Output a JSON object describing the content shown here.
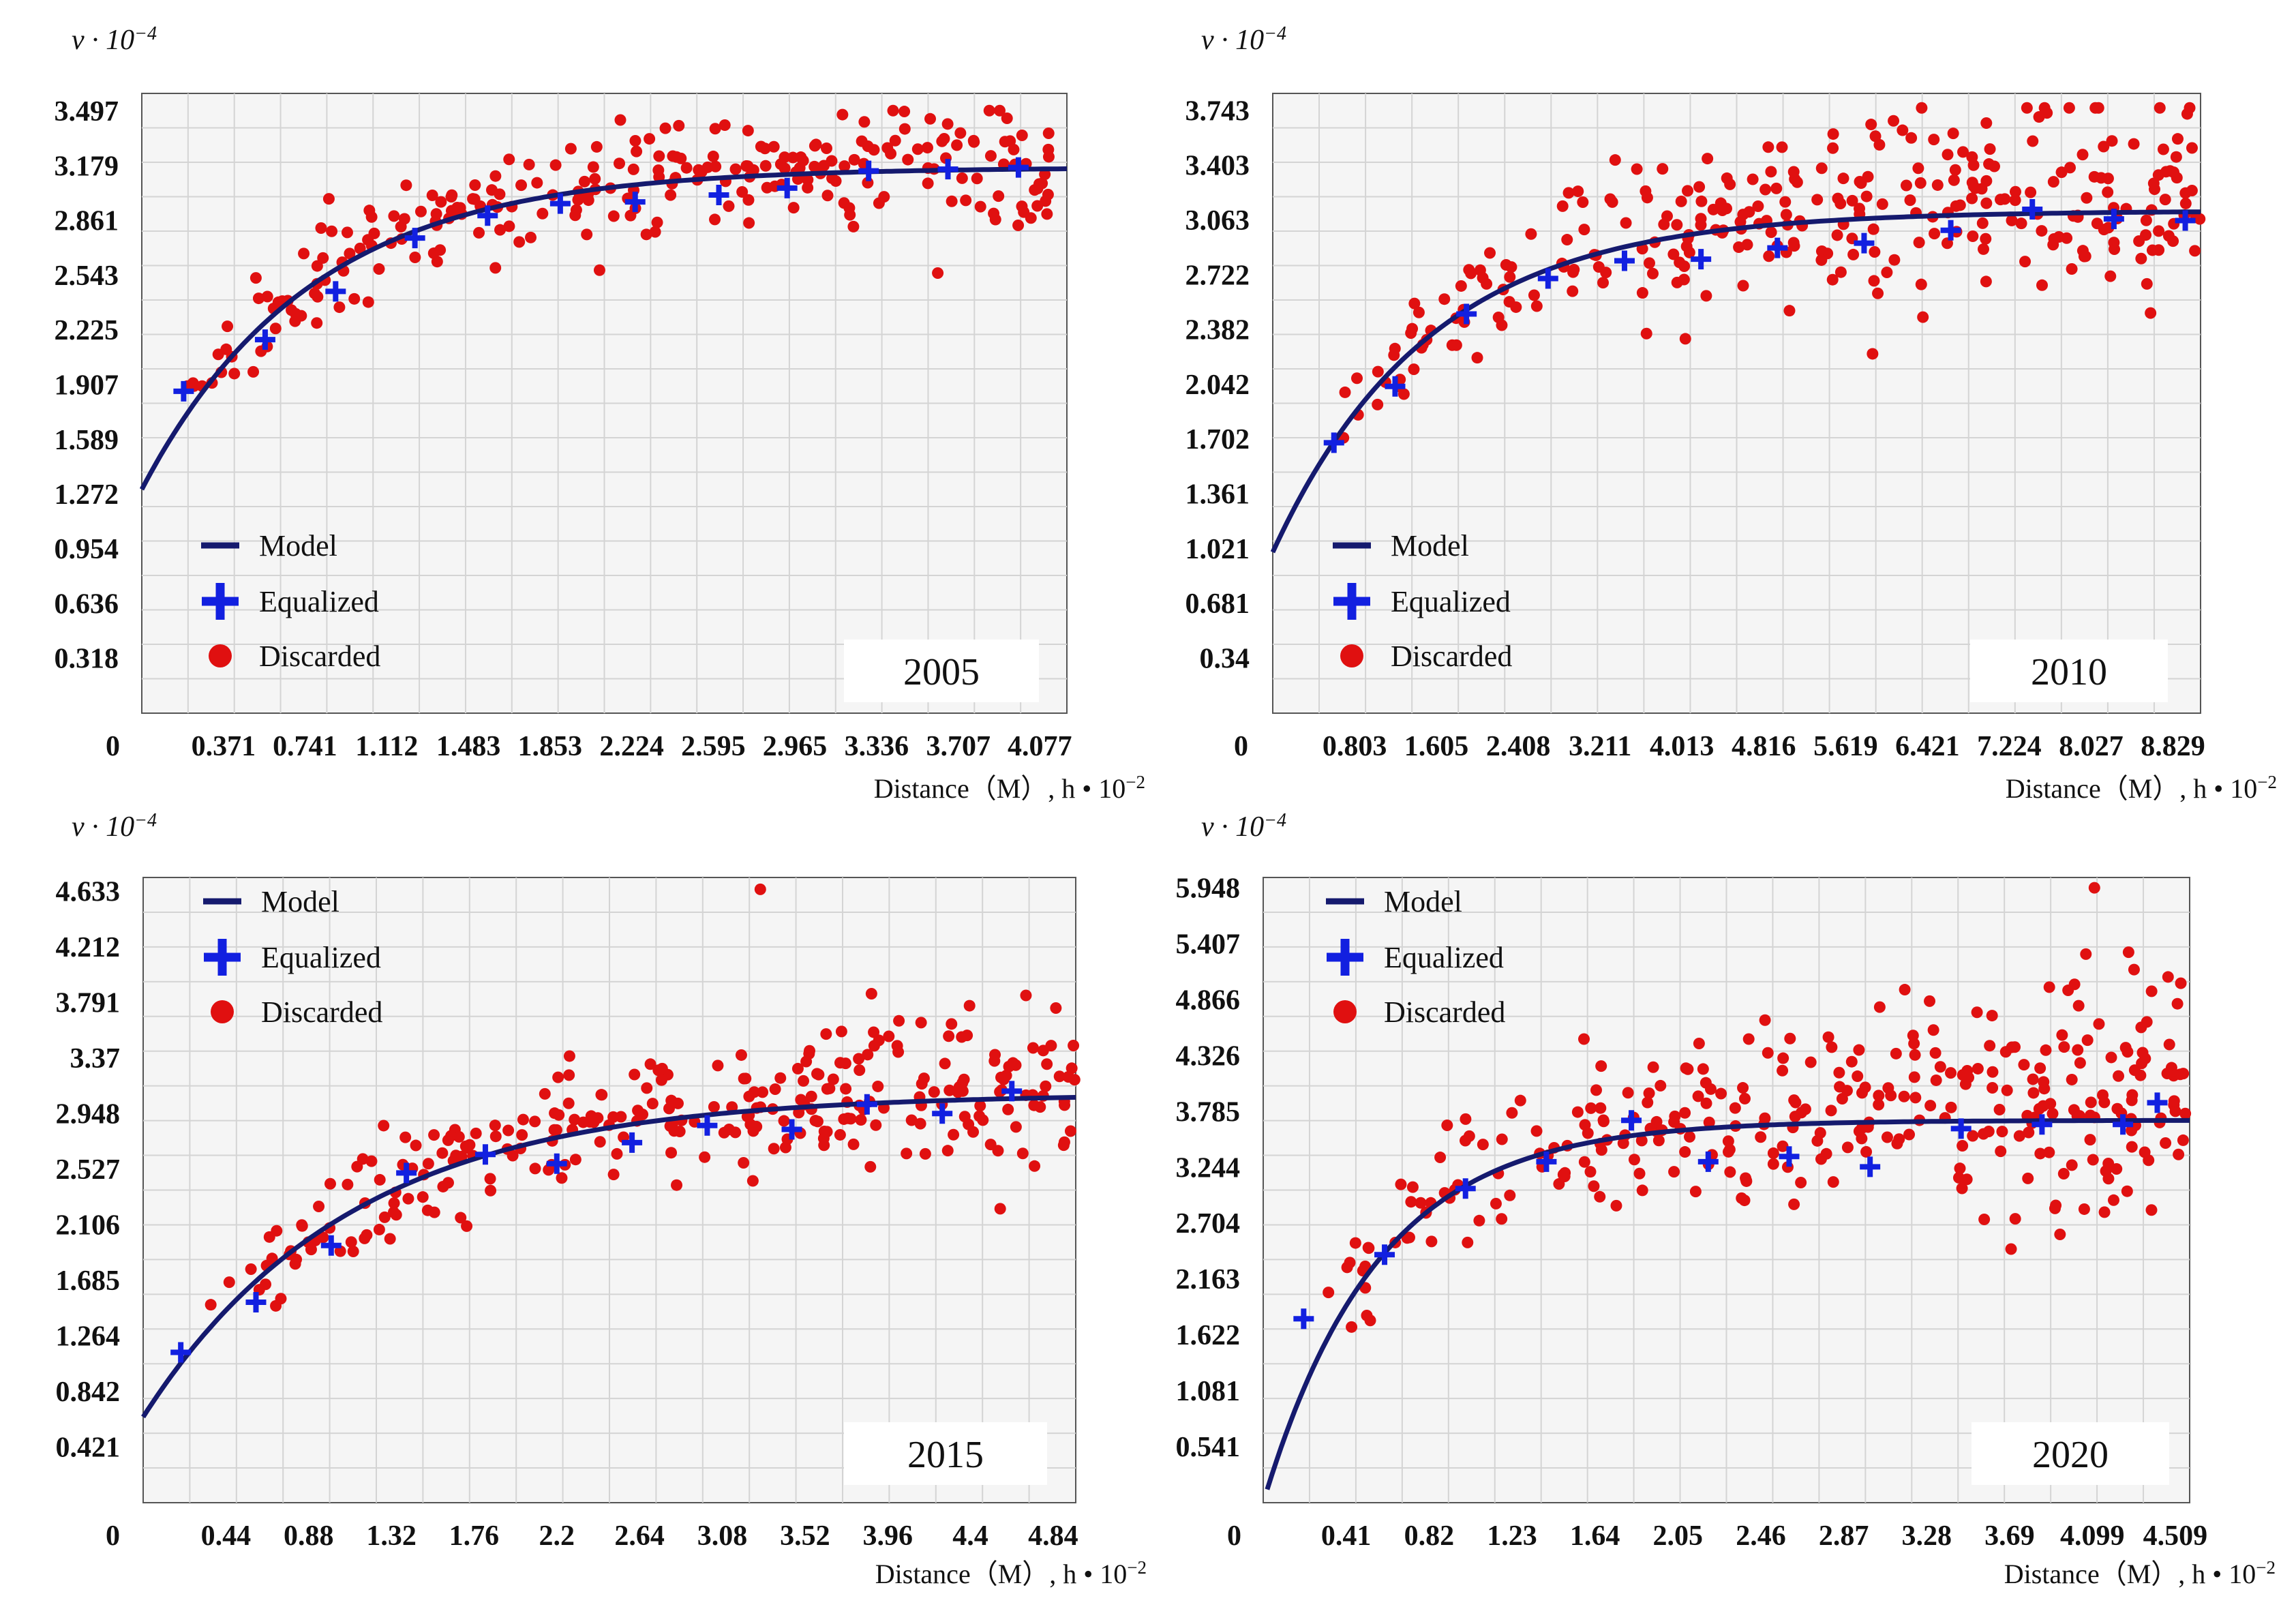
{
  "colors": {
    "model": "#151a6e",
    "equalized": "#1220e0",
    "discarded": "#e01010",
    "grid": "#d4d4d4",
    "plot_bg": "#f5f5f5",
    "frame": "#555555"
  },
  "chart_data": [
    {
      "type": "scatter",
      "panel": "2005",
      "year_label": "2005",
      "ylabel": {
        "base": "ν · 10",
        "exp": "−4"
      },
      "xlabel": {
        "base": "Distance（M）, h • 10",
        "exp": "−2"
      },
      "xlim": [
        0,
        4.2
      ],
      "ylim": [
        0,
        3.6
      ],
      "x_zero_label": "0",
      "xticks": [
        0.371,
        0.741,
        1.112,
        1.483,
        1.853,
        2.224,
        2.595,
        2.965,
        3.336,
        3.707,
        4.077
      ],
      "xtick_labels": [
        "0.371",
        "0.741",
        "1.112",
        "1.483",
        "1.853",
        "2.224",
        "2.595",
        "2.965",
        "3.336",
        "3.707",
        "4.077"
      ],
      "yticks": [
        0.318,
        0.636,
        0.954,
        1.272,
        1.589,
        1.907,
        2.225,
        2.543,
        2.861,
        3.179,
        3.497
      ],
      "ytick_labels": [
        "0.318",
        "0.636",
        "0.954",
        "1.272",
        "1.589",
        "1.907",
        "2.225",
        "2.543",
        "2.861",
        "3.179",
        "3.497"
      ],
      "model": {
        "form": "nugget + sill*(1-exp(-3h/range))",
        "nugget": 1.3,
        "sill": 1.87,
        "range": 2.3,
        "x_start": 0.0,
        "x_end": 4.2
      },
      "equalized": {
        "x": [
          0.19,
          0.56,
          0.88,
          1.24,
          1.57,
          1.9,
          2.24,
          2.62,
          2.93,
          3.3,
          3.66,
          3.98
        ],
        "y": [
          1.87,
          2.17,
          2.45,
          2.76,
          2.89,
          2.96,
          2.97,
          3.01,
          3.05,
          3.15,
          3.16,
          3.17
        ]
      },
      "discarded": {
        "x_min": 0.18,
        "x_max": 4.12,
        "y_min": 1.9,
        "y_max": 3.5,
        "count": 260,
        "spread_near": 0.2,
        "spread_far": 0.35,
        "outlier_high": 3.5
      }
    },
    {
      "type": "scatter",
      "panel": "2010",
      "year_label": "2010",
      "ylabel": {
        "base": "ν · 10",
        "exp": "−4"
      },
      "xlabel": {
        "base": "Distance（M）, h • 10",
        "exp": "−2"
      },
      "xlim": [
        0,
        9.1
      ],
      "ylim": [
        0,
        3.85
      ],
      "x_zero_label": "0",
      "xticks": [
        0.803,
        1.605,
        2.408,
        3.211,
        4.013,
        4.816,
        5.619,
        6.421,
        7.224,
        8.027,
        8.829
      ],
      "xtick_labels": [
        "0.803",
        "1.605",
        "2.408",
        "3.211",
        "4.013",
        "4.816",
        "5.619",
        "6.421",
        "7.224",
        "8.027",
        "8.829"
      ],
      "yticks": [
        0.34,
        0.681,
        1.021,
        1.361,
        1.702,
        2.042,
        2.382,
        2.722,
        3.063,
        3.403,
        3.743
      ],
      "ytick_labels": [
        "0.34",
        "0.681",
        "1.021",
        "1.361",
        "1.702",
        "2.042",
        "2.382",
        "2.722",
        "3.063",
        "3.403",
        "3.743"
      ],
      "model": {
        "form": "nugget + sill*(1-exp(-3h/range))",
        "nugget": 1.0,
        "sill": 2.12,
        "range": 4.6,
        "x_start": 0.0,
        "x_end": 9.1
      },
      "equalized": {
        "x": [
          0.6,
          1.2,
          1.9,
          2.7,
          3.45,
          4.2,
          4.95,
          5.8,
          6.65,
          7.45,
          8.25,
          8.95
        ],
        "y": [
          1.68,
          2.03,
          2.48,
          2.7,
          2.81,
          2.82,
          2.89,
          2.92,
          3.0,
          3.13,
          3.07,
          3.06
        ]
      },
      "discarded": {
        "x_min": 0.6,
        "x_max": 9.1,
        "y_min": 1.7,
        "y_max": 3.76,
        "count": 300,
        "spread_near": 0.3,
        "spread_far": 0.7,
        "outlier_high": 3.76
      }
    },
    {
      "type": "scatter",
      "panel": "2015",
      "year_label": "2015",
      "ylabel": {
        "base": "ν · 10",
        "exp": "−4"
      },
      "xlabel": {
        "base": "Distance（M）, h • 10",
        "exp": "−2"
      },
      "xlim": [
        0,
        4.96
      ],
      "ylim": [
        0,
        4.74
      ],
      "x_zero_label": "0",
      "xticks": [
        0.44,
        0.88,
        1.32,
        1.76,
        2.2,
        2.64,
        3.08,
        3.52,
        3.96,
        4.4,
        4.84
      ],
      "xtick_labels": [
        "0.44",
        "0.88",
        "1.32",
        "1.76",
        "2.2",
        "2.64",
        "3.08",
        "3.52",
        "3.96",
        "4.4",
        "4.84"
      ],
      "yticks": [
        0.421,
        0.842,
        1.264,
        1.685,
        2.106,
        2.527,
        2.948,
        3.37,
        3.791,
        4.212,
        4.633
      ],
      "ytick_labels": [
        "0.421",
        "0.842",
        "1.264",
        "1.685",
        "2.106",
        "2.527",
        "2.948",
        "3.37",
        "3.791",
        "4.212",
        "4.633"
      ],
      "model": {
        "form": "nugget + sill*(1-exp(-3h/range))",
        "nugget": 0.65,
        "sill": 2.45,
        "range": 3.3,
        "x_start": 0.0,
        "x_end": 4.96
      },
      "equalized": {
        "x": [
          0.2,
          0.6,
          1.0,
          1.4,
          1.82,
          2.2,
          2.6,
          3.0,
          3.45,
          3.85,
          4.25,
          4.62
        ],
        "y": [
          1.14,
          1.52,
          1.95,
          2.5,
          2.64,
          2.57,
          2.73,
          2.86,
          2.83,
          3.02,
          2.95,
          3.12
        ]
      },
      "discarded": {
        "x_min": 0.3,
        "x_max": 4.96,
        "y_min": 1.1,
        "y_max": 4.65,
        "count": 290,
        "spread_near": 0.3,
        "spread_far": 0.6,
        "outlier_high": 4.65
      }
    },
    {
      "type": "scatter",
      "panel": "2020",
      "year_label": "2020",
      "ylabel": {
        "base": "ν · 10",
        "exp": "−4"
      },
      "xlabel": {
        "base": "Distance（M）, h • 10",
        "exp": "−2"
      },
      "xlim": [
        0,
        4.58
      ],
      "ylim": [
        0,
        6.05
      ],
      "x_zero_label": "0",
      "xticks": [
        0.41,
        0.82,
        1.23,
        1.64,
        2.05,
        2.46,
        2.87,
        3.28,
        3.69,
        4.099,
        4.509
      ],
      "xtick_labels": [
        "0.41",
        "0.82",
        "1.23",
        "1.64",
        "2.05",
        "2.46",
        "2.87",
        "3.28",
        "3.69",
        "4.099",
        "4.509"
      ],
      "yticks": [
        0.541,
        1.081,
        1.622,
        2.163,
        2.704,
        3.244,
        3.785,
        4.326,
        4.866,
        5.407,
        5.948
      ],
      "ytick_labels": [
        "0.541",
        "1.081",
        "1.622",
        "2.163",
        "2.704",
        "3.244",
        "3.785",
        "4.326",
        "4.866",
        "5.407",
        "5.948"
      ],
      "model": {
        "form": "nugget + sill*(1-exp(-3h/range))",
        "nugget": 0.0,
        "sill": 3.7,
        "range": 1.7,
        "x_start": 0.02,
        "x_end": 4.58
      },
      "equalized": {
        "x": [
          0.2,
          0.6,
          1.0,
          1.4,
          1.82,
          2.2,
          2.6,
          3.0,
          3.45,
          3.85,
          4.25,
          4.42
        ],
        "y": [
          1.78,
          2.4,
          3.04,
          3.3,
          3.7,
          3.3,
          3.35,
          3.25,
          3.62,
          3.66,
          3.66,
          3.87
        ]
      },
      "discarded": {
        "x_min": 0.3,
        "x_max": 4.58,
        "y_min": 1.7,
        "y_max": 5.95,
        "count": 320,
        "spread_near": 0.4,
        "spread_far": 1.2,
        "outlier_high": 5.95
      }
    }
  ],
  "legend": {
    "model_label": "Model",
    "equalized_label": "Equalized",
    "discarded_label": "Discarded"
  }
}
